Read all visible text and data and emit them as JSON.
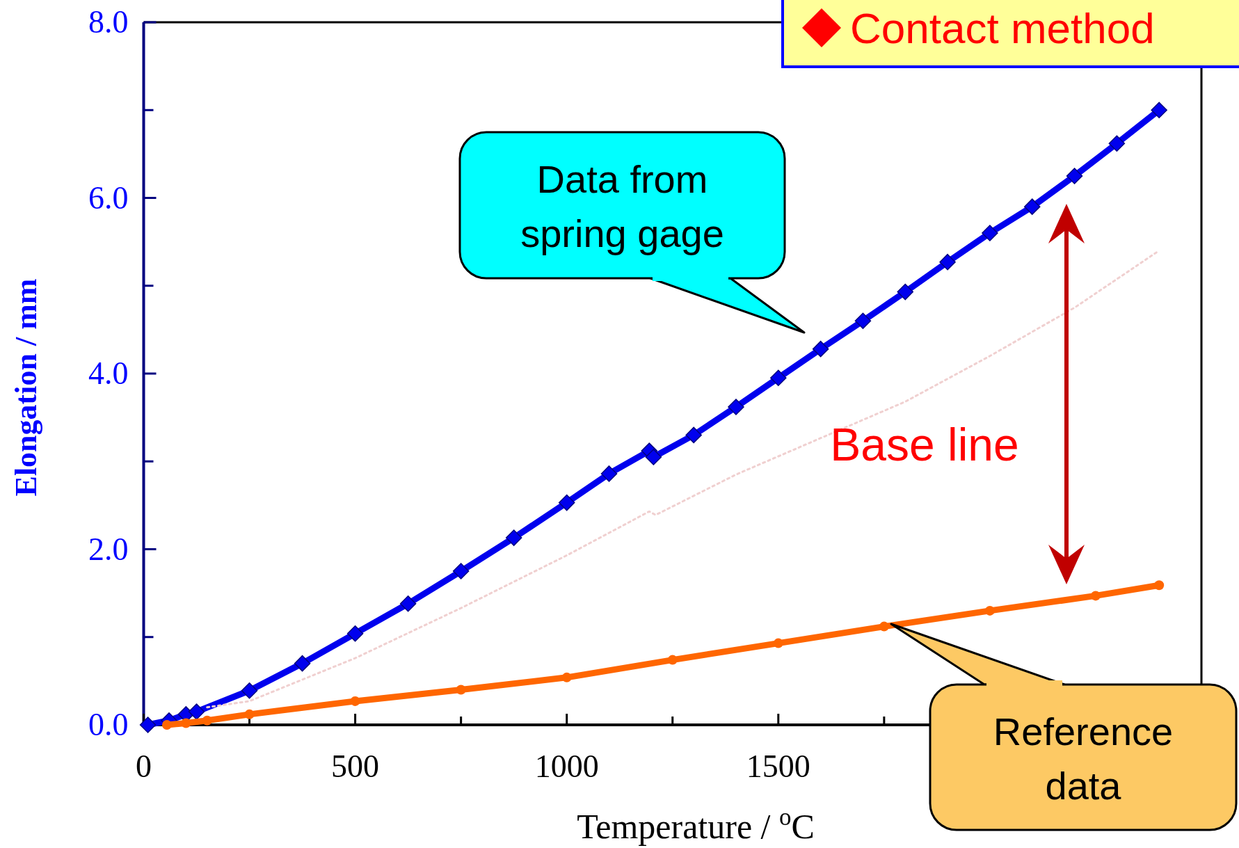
{
  "chart_data": {
    "type": "line",
    "title": "Contact method",
    "xlabel": "Temperature / $^{o}$C",
    "ylabel": "Elongation / mm",
    "xlim": [
      0,
      2500
    ],
    "ylim": [
      0,
      8
    ],
    "xticks": [
      0,
      {
        "value": 250,
        "label": null
      },
      500,
      {
        "value": 750,
        "label": null
      },
      1000,
      {
        "value": 1250,
        "label": null
      },
      1500,
      {
        "value": 1750,
        "label": null
      },
      {
        "value": 2000,
        "label": null
      },
      {
        "value": 2250,
        "label": null
      }
    ],
    "yticks": [
      {
        "value": 0,
        "label": "0.0"
      },
      {
        "value": 1,
        "label": null
      },
      {
        "value": 2,
        "label": "2.0"
      },
      {
        "value": 3,
        "label": null
      },
      {
        "value": 4,
        "label": "4.0"
      },
      {
        "value": 5,
        "label": null
      },
      {
        "value": 6,
        "label": "6.0"
      },
      {
        "value": 7,
        "label": null
      },
      {
        "value": 8,
        "label": "8.0"
      }
    ],
    "grid": false,
    "series": [
      {
        "color": "#0000ee",
        "marker": "diamond",
        "x": [
          10,
          60,
          100,
          125,
          250,
          375,
          500,
          625,
          750,
          875,
          1000,
          1100,
          1195,
          1205,
          1300,
          1400,
          1500,
          1600,
          1700,
          1800,
          1900,
          2000,
          2100,
          2200,
          2300,
          2400
        ],
        "values": [
          0,
          0.05,
          0.12,
          0.15,
          0.39,
          0.7,
          1.04,
          1.38,
          1.75,
          2.13,
          2.53,
          2.86,
          3.12,
          3.05,
          3.3,
          3.62,
          3.95,
          4.28,
          4.6,
          4.93,
          5.27,
          5.6,
          5.9,
          6.25,
          6.62,
          7.0
        ]
      },
      {
        "color": "#f0d0d0",
        "marker": "none",
        "line_style": "dotted",
        "x": [
          150,
          250,
          500,
          750,
          1000,
          1195,
          1210,
          1400,
          1559,
          1800,
          2000,
          2200,
          2400
        ],
        "values": [
          0.2,
          0.27,
          0.76,
          1.33,
          1.93,
          2.43,
          2.39,
          2.85,
          3.18,
          3.68,
          4.2,
          4.75,
          5.4
        ]
      },
      {
        "color": "#ff6600",
        "marker": "circle",
        "x": [
          55,
          100,
          150,
          250,
          500,
          750,
          1000,
          1250,
          1500,
          1750,
          2000,
          2250,
          2400
        ],
        "values": [
          0,
          0.02,
          0.05,
          0.12,
          0.27,
          0.4,
          0.54,
          0.74,
          0.93,
          1.12,
          1.3,
          1.47,
          1.59
        ]
      }
    ],
    "annotations": [
      "Data from spring gage",
      "Reference data",
      "Base line"
    ]
  }
}
